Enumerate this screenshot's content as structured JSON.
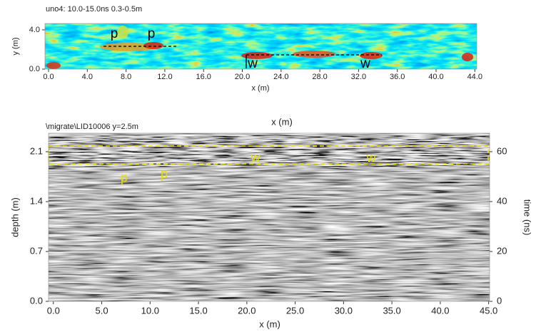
{
  "chart_data": [
    {
      "type": "depth-slice",
      "title": "uno4:  10.0-15.0ns  0.3-0.5m",
      "xlabel": "x (m)",
      "ylabel": "y (m)",
      "xlim": [
        -0.37,
        44.2
      ],
      "ylim": [
        0,
        4.65
      ],
      "xticks": [
        {
          "value": 0,
          "label": "0.0"
        },
        {
          "value": 4,
          "label": "4.0"
        },
        {
          "value": 8,
          "label": "8.0"
        },
        {
          "value": 12,
          "label": "12.0"
        },
        {
          "value": 16,
          "label": "16.0"
        },
        {
          "value": 20,
          "label": "20.0"
        },
        {
          "value": 24,
          "label": "24.0"
        },
        {
          "value": 28,
          "label": "28.0"
        },
        {
          "value": 32,
          "label": "32.0"
        },
        {
          "value": 36,
          "label": "36.0"
        },
        {
          "value": 40,
          "label": "40.0"
        },
        {
          "value": 44,
          "label": "44.0"
        }
      ],
      "yticks": [
        {
          "value": 0,
          "label": "0.0"
        },
        {
          "value": 4,
          "label": "4.0"
        }
      ],
      "annotations": [
        "p",
        "p",
        "w",
        "w"
      ]
    },
    {
      "type": "radargram",
      "title": "\\migrate\\LID10006   y=2.5m",
      "xlabel": "x (m)",
      "xlabel_top": "x (m)",
      "ylabel": "depth (m)",
      "y2label": "time (ns)",
      "xlim": [
        -0.5,
        45.1
      ],
      "ylim": [
        0,
        2.36
      ],
      "y2lim": [
        0,
        67.4
      ],
      "xticks": [
        {
          "value": 0,
          "label": "0.0"
        },
        {
          "value": 5,
          "label": "5.0"
        },
        {
          "value": 10,
          "label": "10.0"
        },
        {
          "value": 15,
          "label": "15.0"
        },
        {
          "value": 20,
          "label": "20.0"
        },
        {
          "value": 25,
          "label": "25.0"
        },
        {
          "value": 30,
          "label": "30.0"
        },
        {
          "value": 35,
          "label": "35.0"
        },
        {
          "value": 40,
          "label": "40.0"
        },
        {
          "value": 45,
          "label": "45.0"
        }
      ],
      "yticks": [
        {
          "value": 0,
          "label": "0.0"
        },
        {
          "value": 0.7,
          "label": "0.7"
        },
        {
          "value": 1.4,
          "label": "1.4"
        },
        {
          "value": 2.1,
          "label": "2.1"
        }
      ],
      "y2ticks": [
        0,
        20,
        40,
        60
      ],
      "annotations": [
        "p",
        "p",
        "w",
        "w"
      ]
    }
  ]
}
